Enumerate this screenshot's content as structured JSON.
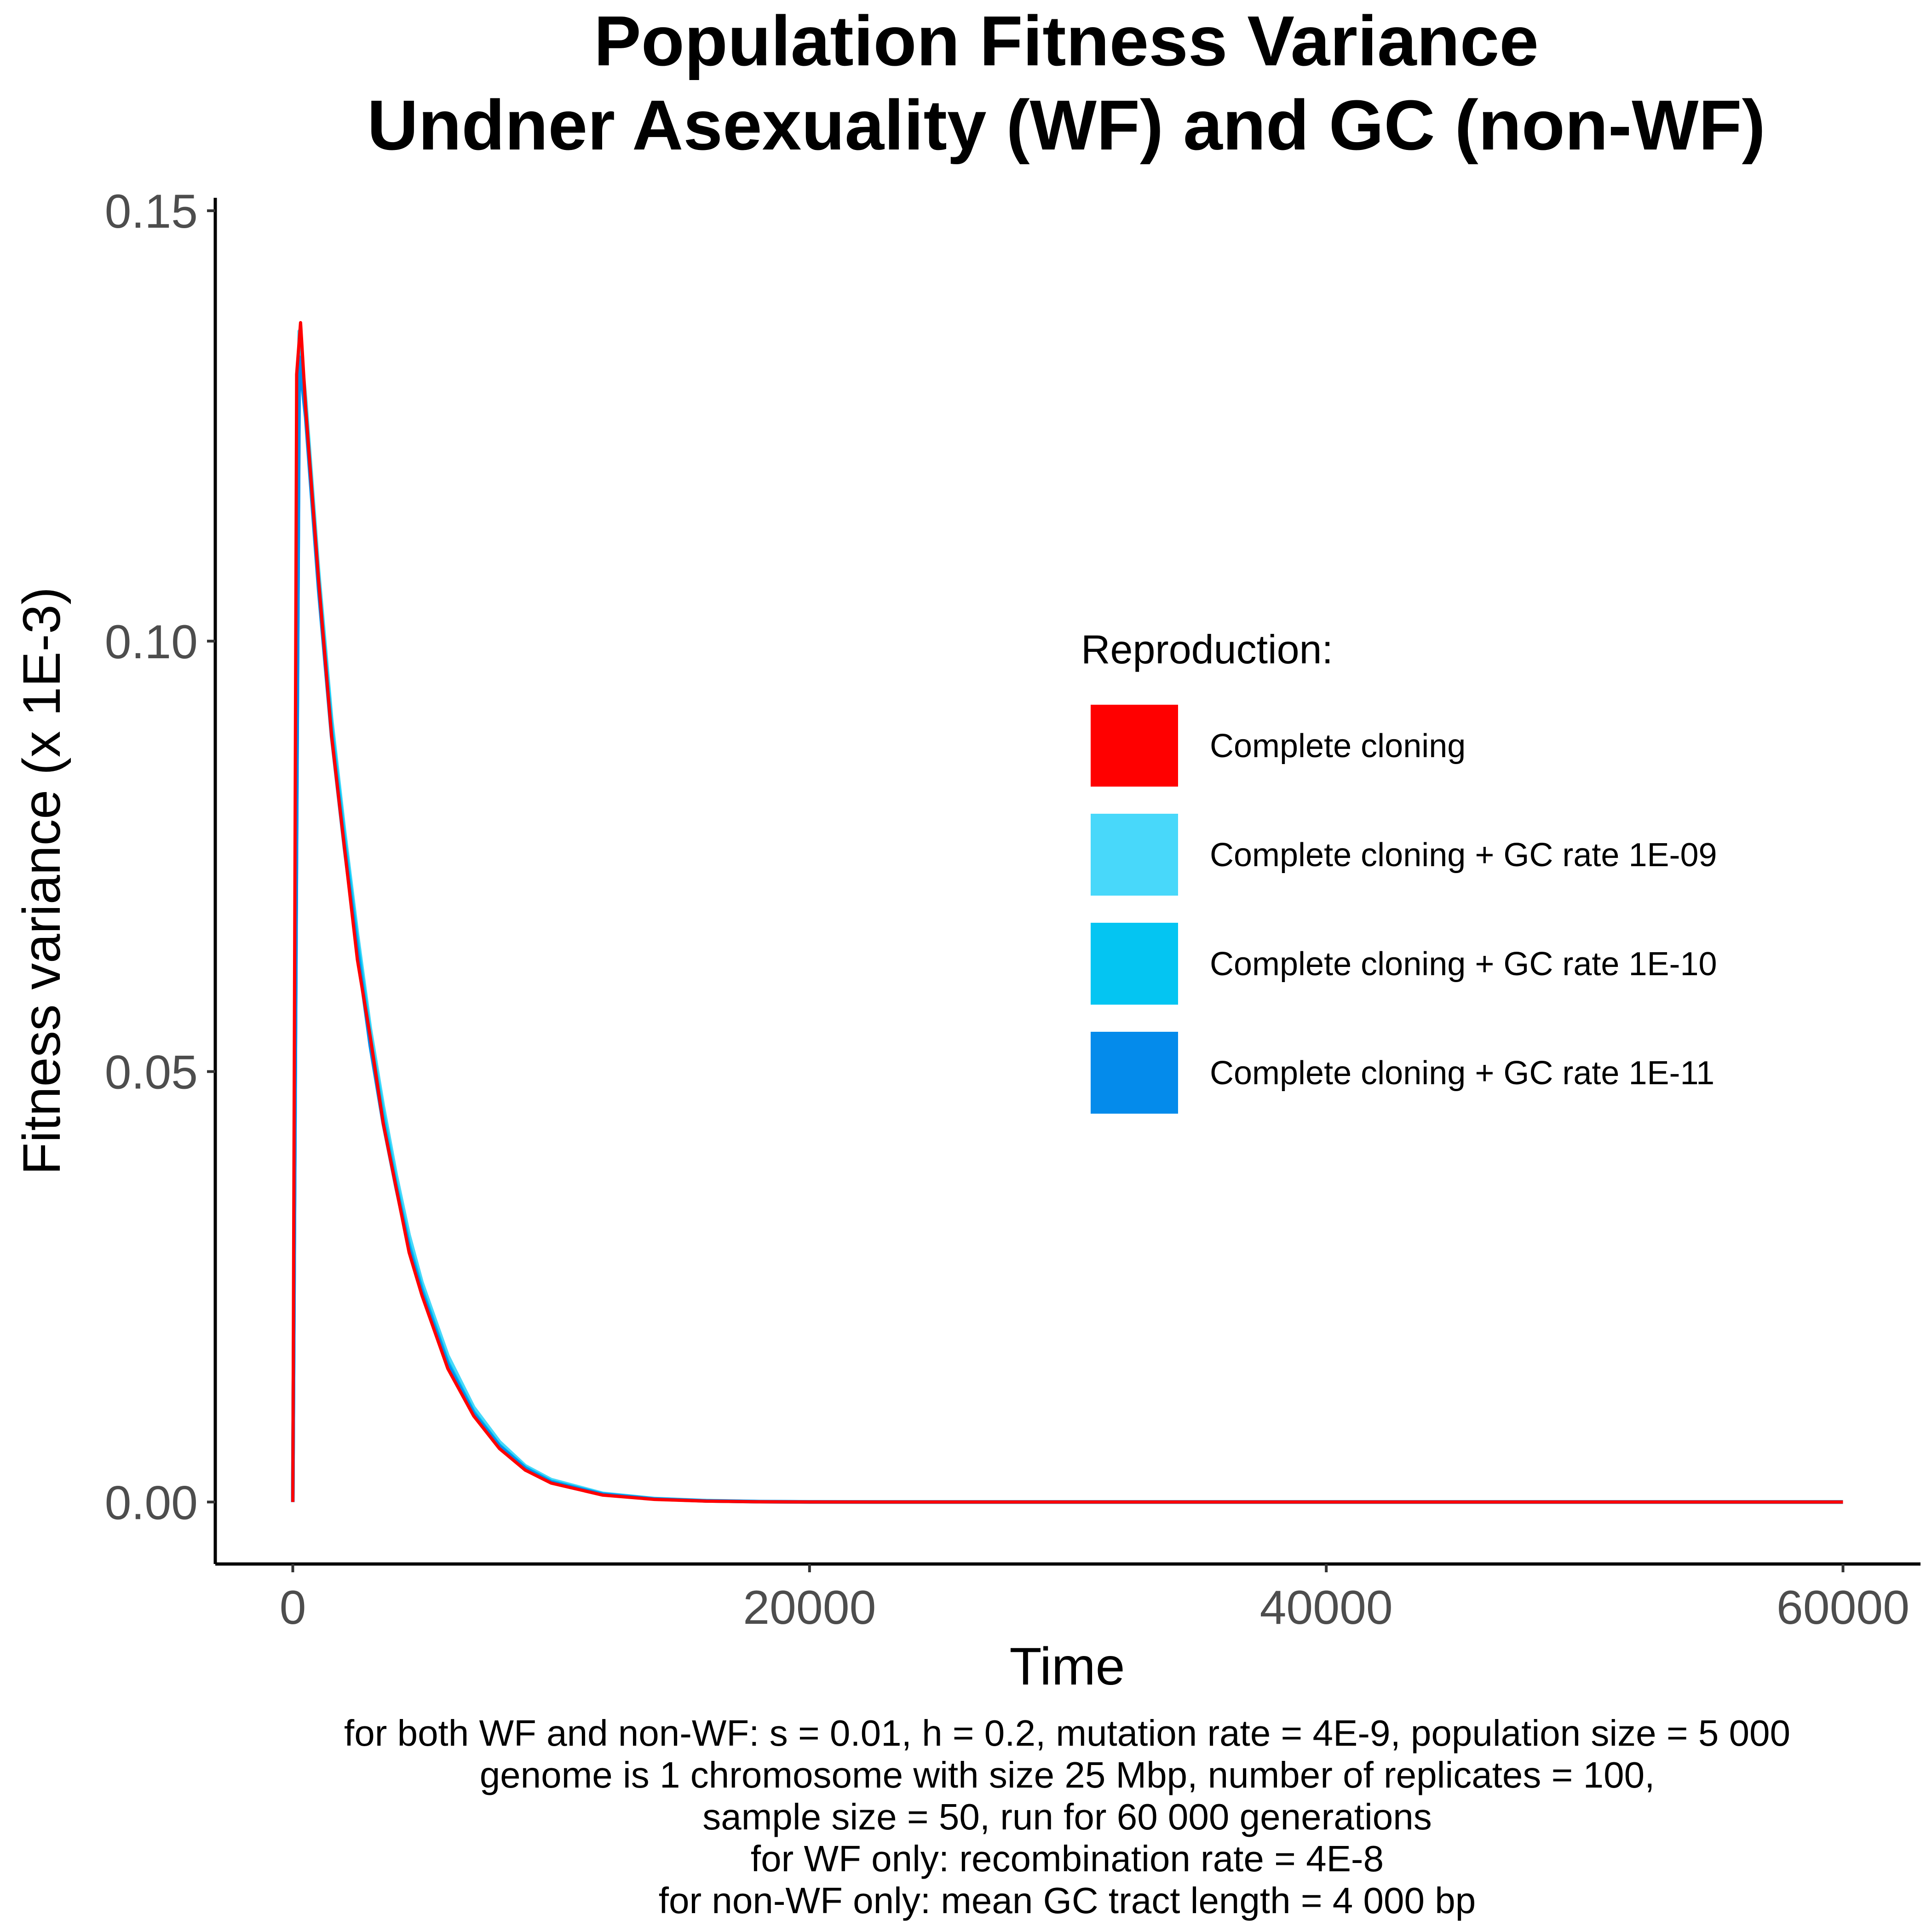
{
  "chart_data": {
    "type": "line",
    "title": [
      "Population Fitness Variance",
      "Undner Asexuality (WF) and GC (non-WF)"
    ],
    "xlabel": "Time",
    "ylabel": "Fitness variance (x 1E-3)",
    "xlim": [
      -3000,
      63000
    ],
    "ylim": [
      -0.0072,
      0.1515
    ],
    "x_ticks": [
      0,
      20000,
      40000,
      60000
    ],
    "x_tick_labels": [
      "0",
      "20000",
      "40000",
      "60000"
    ],
    "y_ticks": [
      0,
      0.05,
      0.1,
      0.15
    ],
    "y_tick_labels": [
      "0.00",
      "0.05",
      "0.10",
      "0.15"
    ],
    "grid": false,
    "legend": {
      "title": "Reproduction:",
      "position": "right-inside"
    },
    "series": [
      {
        "name": "Complete cloning + GC  rate 1E-09",
        "color": "#48D8FA",
        "x": [
          0,
          250,
          500,
          750,
          1000,
          1500,
          2000,
          2500,
          3000,
          3500,
          4000,
          4500,
          5000,
          6000,
          7000,
          8000,
          9000,
          10000,
          12000,
          14000,
          16000,
          18000,
          20000,
          25000,
          30000,
          40000,
          50000,
          60000
        ],
        "y": [
          0,
          0.136,
          0.128,
          0.118,
          0.108,
          0.091,
          0.078,
          0.066,
          0.055,
          0.046,
          0.038,
          0.031,
          0.0255,
          0.017,
          0.011,
          0.007,
          0.0042,
          0.0026,
          0.001,
          0.0004,
          0.00015,
          5e-05,
          2e-05,
          0,
          0,
          0,
          0,
          0
        ]
      },
      {
        "name": "Complete cloning + GC  rate 1E-10",
        "color": "#04C5F2",
        "x": [
          0,
          250,
          500,
          750,
          1000,
          1500,
          2000,
          2500,
          3000,
          3500,
          4000,
          4500,
          5000,
          6000,
          7000,
          8000,
          9000,
          10000,
          12000,
          14000,
          16000,
          18000,
          20000,
          25000,
          30000,
          40000,
          50000,
          60000
        ],
        "y": [
          0,
          0.134,
          0.127,
          0.117,
          0.107,
          0.09,
          0.077,
          0.065,
          0.054,
          0.045,
          0.037,
          0.03,
          0.0248,
          0.0163,
          0.0105,
          0.0066,
          0.004,
          0.0024,
          0.0009,
          0.00035,
          0.00013,
          4e-05,
          1e-05,
          0,
          0,
          0,
          0,
          0
        ]
      },
      {
        "name": "Complete cloning + GC  rate 1E-11",
        "color": "#048BEB",
        "x": [
          0,
          250,
          500,
          750,
          1000,
          1500,
          2000,
          2500,
          3000,
          3500,
          4000,
          4500,
          5000,
          6000,
          7000,
          8000,
          9000,
          10000,
          12000,
          14000,
          16000,
          18000,
          20000,
          25000,
          30000,
          40000,
          50000,
          60000
        ],
        "y": [
          0,
          0.133,
          0.126,
          0.116,
          0.106,
          0.089,
          0.076,
          0.064,
          0.053,
          0.044,
          0.0365,
          0.0295,
          0.0244,
          0.016,
          0.0103,
          0.0065,
          0.0039,
          0.0023,
          0.0009,
          0.00035,
          0.00013,
          4e-05,
          1e-05,
          0,
          0,
          0,
          0,
          0
        ]
      },
      {
        "name": "Complete cloning",
        "color": "#FF0000",
        "x": [
          0,
          150,
          300,
          500,
          750,
          1000,
          1500,
          2000,
          2500,
          3000,
          3500,
          4000,
          4500,
          5000,
          6000,
          7000,
          8000,
          9000,
          10000,
          12000,
          14000,
          16000,
          18000,
          20000,
          25000,
          30000,
          40000,
          50000,
          60000
        ],
        "y": [
          0,
          0.131,
          0.137,
          0.127,
          0.117,
          0.107,
          0.089,
          0.076,
          0.063,
          0.054,
          0.044,
          0.0365,
          0.029,
          0.024,
          0.0155,
          0.01,
          0.0062,
          0.0037,
          0.0022,
          0.0008,
          0.0003,
          0.0001,
          3e-05,
          1e-05,
          0,
          0,
          0,
          0,
          0
        ]
      }
    ],
    "legend_order": [
      "Complete cloning",
      "Complete cloning + GC  rate 1E-09",
      "Complete cloning + GC  rate 1E-10",
      "Complete cloning + GC  rate 1E-11"
    ],
    "caption": [
      "for both WF and non-WF: s = 0.01, h = 0.2, mutation rate = 4E-9, population size = 5 000",
      "genome is 1 chromosome with size 25 Mbp, number of replicates = 100,",
      "sample size = 50, run for 60 000 generations",
      "for WF only: recombination rate = 4E-8",
      "for non-WF only: mean GC tract length = 4 000 bp"
    ]
  }
}
